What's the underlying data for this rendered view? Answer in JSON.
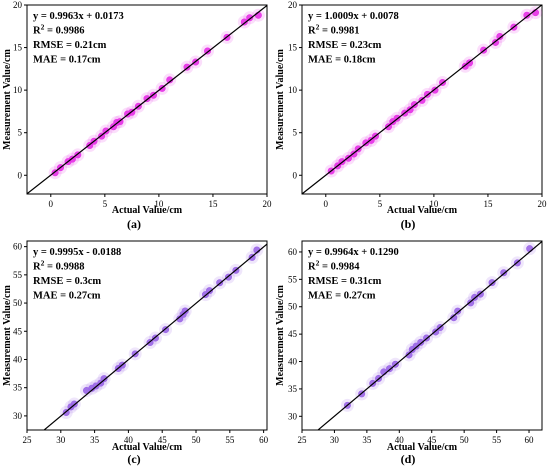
{
  "chart_data": [
    {
      "id": "a",
      "type": "scatter",
      "panel_label": "(a)",
      "xlabel": "Actual Value/cm",
      "ylabel": "Measurement Value/cm",
      "xlim": [
        -2.2,
        20
      ],
      "ylim": [
        -2.2,
        20
      ],
      "xticks": [
        0,
        5,
        10,
        15,
        20
      ],
      "yticks": [
        0,
        5,
        10,
        15,
        20
      ],
      "stats": [
        "y = 0.9963x + 0.0173",
        "R2 = 0.9986",
        "RMSE = 0.21cm",
        "MAE = 0.17cm"
      ],
      "fit": {
        "slope": 0.9963,
        "intercept": 0.0173
      },
      "point_color": "#e632e6",
      "line_color": "#000000",
      "x": [
        0.4,
        0.9,
        1.6,
        2.0,
        2.5,
        3.6,
        4.0,
        4.7,
        5.1,
        5.8,
        6.1,
        6.4,
        7.1,
        7.5,
        8.1,
        8.9,
        9.5,
        10.3,
        11.0,
        12.6,
        13.4,
        14.5,
        16.3,
        17.9,
        18.4,
        19.2
      ],
      "y": [
        0.3,
        0.9,
        1.6,
        1.9,
        2.4,
        3.5,
        4.0,
        4.6,
        5.2,
        5.7,
        6.2,
        6.3,
        7.2,
        7.4,
        8.1,
        9.0,
        9.4,
        10.2,
        11.2,
        12.7,
        13.3,
        14.6,
        16.2,
        18.0,
        18.5,
        18.8
      ]
    },
    {
      "id": "b",
      "type": "scatter",
      "panel_label": "(b)",
      "xlabel": "Actual Value/cm",
      "ylabel": "Measurement Value/cm",
      "xlim": [
        -2.2,
        20
      ],
      "ylim": [
        -2.2,
        20
      ],
      "xticks": [
        0,
        5,
        10,
        15,
        20
      ],
      "yticks": [
        0,
        5,
        10,
        15,
        20
      ],
      "stats": [
        "y = 1.0009x + 0.0078",
        "R2 = 0.9981",
        "RMSE = 0.23cm",
        "MAE = 0.18cm"
      ],
      "fit": {
        "slope": 1.0009,
        "intercept": 0.0078
      },
      "point_color": "#e632e6",
      "line_color": "#000000",
      "x": [
        0.5,
        1.1,
        1.5,
        2.1,
        2.6,
        3.0,
        3.7,
        4.2,
        4.6,
        5.8,
        6.2,
        6.6,
        7.3,
        7.8,
        8.2,
        8.9,
        9.4,
        10.1,
        10.8,
        12.9,
        13.3,
        14.6,
        15.7,
        16.1,
        17.4,
        18.6,
        19.4
      ],
      "y": [
        0.5,
        1.1,
        1.6,
        2.0,
        2.5,
        3.1,
        3.8,
        4.1,
        4.6,
        5.7,
        6.3,
        6.7,
        7.3,
        7.7,
        8.3,
        8.8,
        9.5,
        10.0,
        10.9,
        12.8,
        13.2,
        14.7,
        15.6,
        16.3,
        17.4,
        18.8,
        19.1
      ]
    },
    {
      "id": "c",
      "type": "scatter",
      "panel_label": "(c)",
      "xlabel": "Actual Value/cm",
      "ylabel": "Measurement Value/cm",
      "xlim": [
        25,
        60.5
      ],
      "ylim": [
        27.5,
        61
      ],
      "xticks": [
        25,
        30,
        35,
        40,
        45,
        50,
        55,
        60
      ],
      "yticks": [
        30,
        35,
        40,
        45,
        50,
        55,
        60
      ],
      "stats": [
        "y = 0.9995x - 0.0188",
        "R2 = 0.9988",
        "RMSE = 0.3cm",
        "MAE = 0.27cm"
      ],
      "fit": {
        "slope": 0.9995,
        "intercept": -0.0188
      },
      "point_color": "#9a66e6",
      "line_color": "#000000",
      "x": [
        30.8,
        31.5,
        32.0,
        33.8,
        34.6,
        35.2,
        35.9,
        36.4,
        38.5,
        39.1,
        41.0,
        43.2,
        44.0,
        45.5,
        47.6,
        48.1,
        48.4,
        51.4,
        52.0,
        53.5,
        54.8,
        55.9,
        58.3,
        59.0
      ],
      "y": [
        30.6,
        31.6,
        32.1,
        34.5,
        34.9,
        35.3,
        35.8,
        36.6,
        38.4,
        39.0,
        41.0,
        43.0,
        43.8,
        45.3,
        47.2,
        48.0,
        48.6,
        51.5,
        52.2,
        53.6,
        54.6,
        55.8,
        58.1,
        59.4
      ]
    },
    {
      "id": "d",
      "type": "scatter",
      "panel_label": "(d)",
      "xlabel": "Actual Value/cm",
      "ylabel": "Measurement Value/cm",
      "xlim": [
        25,
        62
      ],
      "ylim": [
        27.5,
        62
      ],
      "xticks": [
        25,
        30,
        35,
        40,
        45,
        50,
        55,
        60
      ],
      "yticks": [
        30,
        35,
        40,
        45,
        50,
        55,
        60
      ],
      "stats": [
        "y = 0.9964x + 0.1290",
        "R2 = 0.9984",
        "RMSE = 0.31cm",
        "MAE = 0.27cm"
      ],
      "fit": {
        "slope": 0.9964,
        "intercept": 0.129
      },
      "point_color": "#9a66e6",
      "line_color": "#000000",
      "x": [
        32.0,
        34.2,
        35.9,
        36.8,
        37.6,
        38.5,
        39.4,
        41.5,
        42.0,
        42.6,
        43.3,
        44.2,
        45.6,
        46.3,
        48.4,
        49.0,
        51.0,
        51.6,
        52.5,
        54.3,
        56.1,
        58.2,
        60.1
      ],
      "y": [
        32.0,
        34.1,
        36.0,
        36.9,
        38.1,
        38.7,
        39.5,
        41.2,
        42.2,
        42.8,
        43.5,
        44.3,
        45.4,
        46.2,
        48.0,
        49.2,
        50.7,
        51.7,
        52.3,
        54.4,
        56.2,
        58.0,
        60.6
      ]
    }
  ]
}
